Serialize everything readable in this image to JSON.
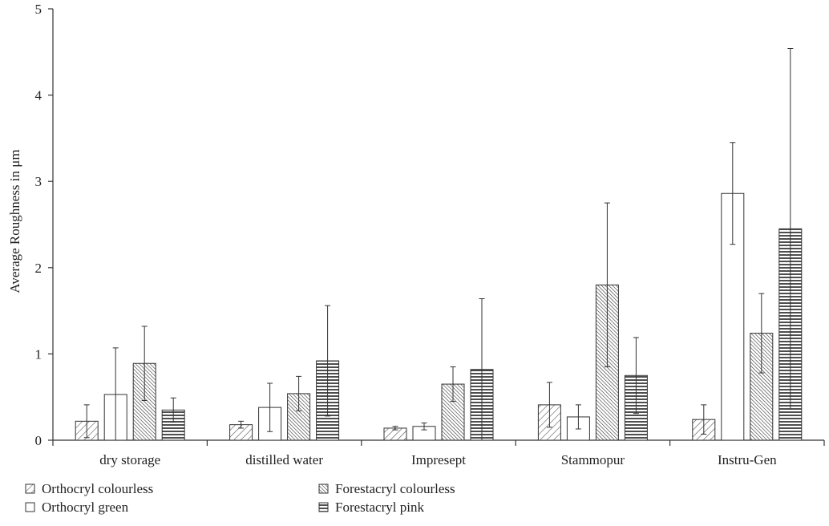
{
  "chart_data": {
    "type": "bar",
    "title": "",
    "xlabel": "",
    "ylabel": "Average Roughness in μm",
    "ylim": [
      0,
      5
    ],
    "yticks": [
      0,
      1,
      2,
      3,
      4,
      5
    ],
    "categories": [
      "dry storage",
      "distilled water",
      "Impresept",
      "Stammopur",
      "Instru-Gen"
    ],
    "series": [
      {
        "name": "Orthocryl colourless",
        "pattern": "diagonal-sparse",
        "values": [
          0.22,
          0.18,
          0.14,
          0.41,
          0.24
        ],
        "error": [
          0.19,
          0.04,
          0.02,
          0.26,
          0.17
        ]
      },
      {
        "name": "Orthocryl green",
        "pattern": "empty",
        "values": [
          0.53,
          0.38,
          0.16,
          0.27,
          2.86
        ],
        "error": [
          0.54,
          0.28,
          0.04,
          0.14,
          0.59
        ]
      },
      {
        "name": "Forestacryl colourless",
        "pattern": "diagonal-dense",
        "values": [
          0.89,
          0.54,
          0.65,
          1.8,
          1.24
        ],
        "error": [
          0.43,
          0.2,
          0.2,
          0.95,
          0.46
        ]
      },
      {
        "name": "Forestacryl pink",
        "pattern": "horizontal",
        "values": [
          0.35,
          0.92,
          0.82,
          0.75,
          2.45
        ],
        "error": [
          0.14,
          0.64,
          0.82,
          0.44,
          2.09
        ]
      }
    ],
    "legend": {
      "placement": "bottom",
      "columns": [
        [
          "Orthocryl colourless",
          "Orthocryl green"
        ],
        [
          "Forestacryl colourless",
          "Forestacryl pink"
        ]
      ]
    },
    "grid": false,
    "colors": {
      "stroke": "#333333",
      "fill": "#ffffff"
    }
  }
}
